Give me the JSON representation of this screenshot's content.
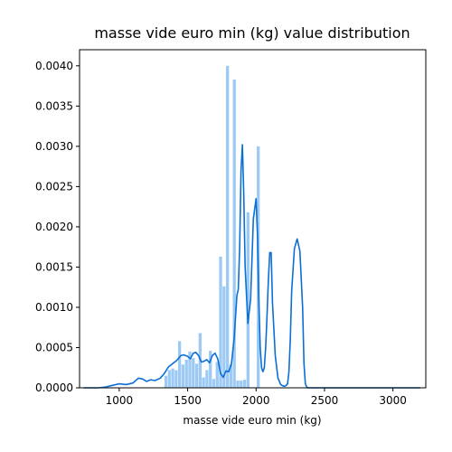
{
  "chart_data": {
    "type": "bar",
    "title": "masse vide euro min (kg) value distribution",
    "xlabel": "masse vide euro min (kg)",
    "ylabel": "",
    "xlim": [
      710,
      3240
    ],
    "ylim": [
      0,
      0.0042
    ],
    "x_ticks": [
      1000,
      1500,
      2000,
      2500,
      3000
    ],
    "y_ticks": [
      0.0,
      0.0005,
      0.001,
      0.0015,
      0.002,
      0.0025,
      0.003,
      0.0035,
      0.004
    ],
    "y_tick_labels": [
      "0.0000",
      "0.0005",
      "0.0010",
      "0.0015",
      "0.0020",
      "0.0025",
      "0.0030",
      "0.0035",
      "0.0040"
    ],
    "grid": false,
    "colors": {
      "bars": "#9ccaf5",
      "kde": "#0b6fd6"
    },
    "histogram": {
      "bin_width": 25,
      "bins": [
        {
          "x0": 1330,
          "x1": 1355,
          "value": 0.00015
        },
        {
          "x0": 1355,
          "x1": 1380,
          "value": 0.00022
        },
        {
          "x0": 1380,
          "x1": 1405,
          "value": 0.00024
        },
        {
          "x0": 1405,
          "x1": 1430,
          "value": 0.00022
        },
        {
          "x0": 1430,
          "x1": 1455,
          "value": 0.00058
        },
        {
          "x0": 1455,
          "x1": 1480,
          "value": 0.00029
        },
        {
          "x0": 1480,
          "x1": 1505,
          "value": 0.00035
        },
        {
          "x0": 1505,
          "x1": 1530,
          "value": 0.00045
        },
        {
          "x0": 1530,
          "x1": 1555,
          "value": 0.00037
        },
        {
          "x0": 1555,
          "x1": 1580,
          "value": 0.0003
        },
        {
          "x0": 1580,
          "x1": 1605,
          "value": 0.00068
        },
        {
          "x0": 1605,
          "x1": 1630,
          "value": 0.00013
        },
        {
          "x0": 1630,
          "x1": 1655,
          "value": 0.00022
        },
        {
          "x0": 1655,
          "x1": 1680,
          "value": 0.00046
        },
        {
          "x0": 1680,
          "x1": 1705,
          "value": 0.00011
        },
        {
          "x0": 1705,
          "x1": 1730,
          "value": 0.00032
        },
        {
          "x0": 1730,
          "x1": 1755,
          "value": 0.00163
        },
        {
          "x0": 1755,
          "x1": 1780,
          "value": 0.00126
        },
        {
          "x0": 1780,
          "x1": 1805,
          "value": 0.004
        },
        {
          "x0": 1805,
          "x1": 1830,
          "value": 0.00029
        },
        {
          "x0": 1830,
          "x1": 1855,
          "value": 0.00383
        },
        {
          "x0": 1855,
          "x1": 1880,
          "value": 9e-05
        },
        {
          "x0": 1880,
          "x1": 1905,
          "value": 9e-05
        },
        {
          "x0": 1905,
          "x1": 1930,
          "value": 0.0001
        },
        {
          "x0": 1930,
          "x1": 1955,
          "value": 0.00218
        },
        {
          "x0": 1955,
          "x1": 1980,
          "value": 0.0
        },
        {
          "x0": 1980,
          "x1": 2005,
          "value": 0.0
        },
        {
          "x0": 2005,
          "x1": 2030,
          "value": 0.003
        }
      ]
    },
    "kde": {
      "x": [
        740,
        800,
        850,
        900,
        950,
        1000,
        1050,
        1100,
        1140,
        1170,
        1200,
        1230,
        1260,
        1300,
        1330,
        1360,
        1390,
        1420,
        1450,
        1470,
        1500,
        1520,
        1540,
        1560,
        1580,
        1600,
        1620,
        1640,
        1660,
        1680,
        1700,
        1720,
        1740,
        1760,
        1780,
        1800,
        1820,
        1840,
        1860,
        1870,
        1880,
        1890,
        1900,
        1910,
        1920,
        1940,
        1960,
        1980,
        2000,
        2010,
        2020,
        2030,
        2040,
        2050,
        2060,
        2070,
        2080,
        2090,
        2100,
        2110,
        2120,
        2140,
        2160,
        2180,
        2200,
        2210,
        2220,
        2230,
        2240,
        2250,
        2260,
        2280,
        2300,
        2320,
        2340,
        2350,
        2360,
        2370,
        2380,
        2390,
        2400,
        2420,
        2440,
        2460,
        2480,
        2500,
        2520,
        2540,
        2560,
        2580,
        2600,
        2620,
        2640,
        2660,
        2680,
        2700,
        2750,
        2800,
        2900,
        3000,
        3100,
        3200
      ],
      "y": [
        0.0,
        0.0,
        0.0,
        1e-05,
        3e-05,
        5e-05,
        4e-05,
        6e-05,
        0.00012,
        0.00011,
        8e-05,
        0.0001,
        9e-05,
        0.00012,
        0.00018,
        0.00026,
        0.0003,
        0.00034,
        0.0004,
        0.00041,
        0.00039,
        0.00036,
        0.00043,
        0.00044,
        0.0004,
        0.00032,
        0.00033,
        0.00035,
        0.00031,
        0.0004,
        0.00043,
        0.00036,
        0.00018,
        0.00013,
        0.00021,
        0.0002,
        0.0003,
        0.00062,
        0.00115,
        0.00122,
        0.00175,
        0.0027,
        0.00302,
        0.0024,
        0.0015,
        0.0008,
        0.0011,
        0.0021,
        0.00235,
        0.0019,
        0.0011,
        0.0005,
        0.00025,
        0.0002,
        0.00025,
        0.0005,
        0.0009,
        0.00135,
        0.00168,
        0.00168,
        0.00105,
        0.0004,
        0.00012,
        4e-05,
        2e-05,
        2e-05,
        3e-05,
        5e-05,
        0.0002,
        0.0006,
        0.0012,
        0.00173,
        0.00185,
        0.0017,
        0.001,
        0.0003,
        5e-05,
        1e-05,
        0.0,
        0.0,
        0.0,
        0.0,
        0.0,
        0.0,
        0.0,
        0.0,
        0.0,
        0.0,
        0.0,
        0.0,
        0.0,
        0.0,
        0.0,
        0.0,
        0.0,
        0.0,
        0.0,
        0.0,
        0.0,
        0.0,
        0.0,
        0.0
      ]
    }
  }
}
